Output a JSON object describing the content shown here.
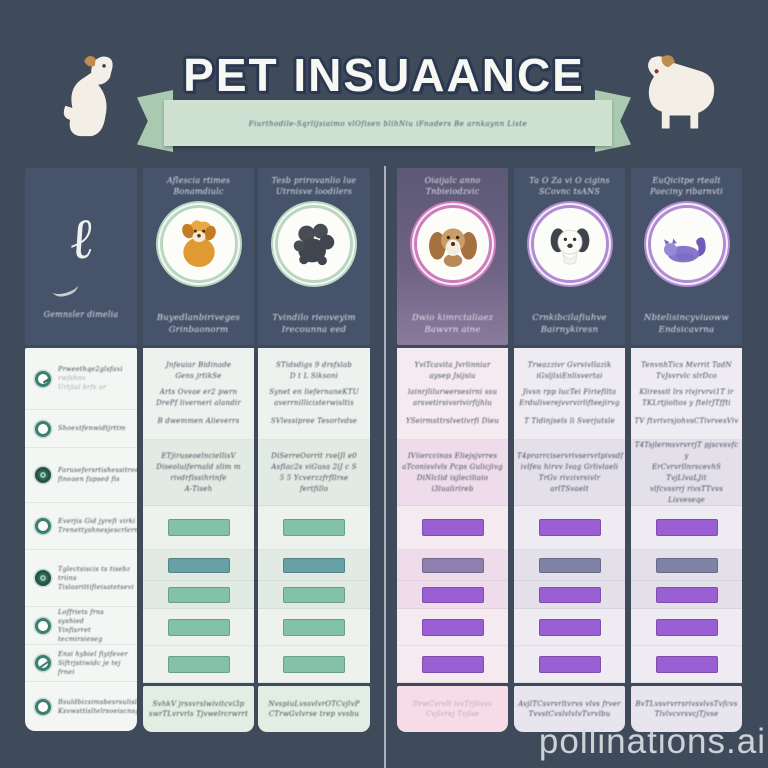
{
  "banner": {
    "title": "PET INSUAANCE",
    "subtitle": "Fiurthodile-Sqrlijsiaimo vlOfisen blihNiu iFnaders Be arnkaynn Liste"
  },
  "watermark": "pollinations.ai",
  "colors": {
    "background": "#3f4a5b",
    "panel": "#47536a",
    "mint": "#cfe1d1",
    "mint_dark": "#a9c9b1",
    "title": "#f7f8f3",
    "title_outline": "#2c3850",
    "ink": "#2e3a49",
    "green_bar": "#84c1ab",
    "teal_bar": "#67a0a5",
    "purple_bar": "#9a5fd3",
    "gray_bar": "#7e83a5",
    "rose_gray_bar": "#8d80af",
    "divider_line": "#c6ccd6",
    "watermark": "#dde1e5",
    "label_teal": "#3c7f72"
  },
  "left_panel": {
    "glyph": "ℓ",
    "heading": "Gemnsler dimelia",
    "rows": [
      {
        "icon": "clock-icon",
        "lines": [
          "Prweethqe2glsfaxi",
          "rwfshnv",
          "Urtjial krfs ar"
        ]
      },
      {
        "icon": "ring-icon",
        "lines": [
          "Shoextfenwidtjrttm"
        ]
      },
      {
        "icon": "swirl-icon",
        "lines": [
          "Farusefersrtishessitree",
          "fineaen fapsed fis"
        ]
      },
      {
        "icon": "ring-icon",
        "lines": [
          "Everjis Gid jyrefi virki",
          "Trenettyshnesjescrlernds"
        ]
      },
      {
        "icon": "swirl-icon",
        "lines": [
          "Tglectsiscis ts tisebz triins",
          "Tislasrittifieisatetsevi"
        ]
      },
      {
        "icon": "ring-icon",
        "lines": [
          "Loffriets frns syshied",
          "Yinfisrret tecmirsieseg"
        ]
      },
      {
        "icon": "ring-slash-icon",
        "lines": [
          "Ensi hybiel fiyifever",
          "Siftrjstiwidc je tej frnei"
        ]
      },
      {
        "icon": "ring-icon",
        "lines": [
          "Bsuldbizsimsbesrsulislavlu",
          "Ksvwsttisltelrsoeiscnsg"
        ]
      }
    ]
  },
  "columns": [
    {
      "theme": "green",
      "header_lines": [
        "Aflescia rtimes",
        "Bonamdiulc"
      ],
      "icon": "orange-dog-icon",
      "name_lines": [
        "Buyedlanbiriveges",
        "Grinbaonorm"
      ],
      "rowA": [
        "Jnfeuiar Bidinade",
        "Gens jrtikSe",
        "Arts Ovvae er2 pwrn",
        "DrePf liverneri alandir",
        "B dwemmen Alieverrs"
      ],
      "rowB": [
        "ETjiruseoelnciellisV",
        "Diseoluifernald slim m",
        "rivdrfissihrinfe",
        "A-Tiseh"
      ],
      "card": [
        "SvhkV jrssvrslwivitcvi3p",
        "swrTLvrvrls Tjvwelrcrwrrt"
      ]
    },
    {
      "theme": "green",
      "header_lines": [
        "Tesb prirovanlio lue",
        "Utrnisve loodilers"
      ],
      "icon": "gray-dog-icon",
      "name_lines": [
        "Tvindilo rieoveyim",
        "Irecounna eed"
      ],
      "rowA": [
        "STidsdigs 9 drsfslab",
        "D t L Siksoni",
        "Synet en liefernaneKTU",
        "averrnillicisterwisltis",
        "SVlessipree Tesorlvdse"
      ],
      "rowB": [
        "DiSerreOorrit rvelJl e0",
        "Asflac2s viGusa 2iJ c S",
        "5 5 Ycverzzfrfllrse",
        "fertfillo"
      ],
      "card": [
        "NvspiuLvssvlvrOTCvjlvP",
        "CTrwGvlvrse trep vvsbu"
      ]
    },
    {
      "theme": "rose",
      "header_lines": [
        "Oiaijalc anno",
        "Tnbieiodzvic"
      ],
      "icon": "brown-puppy-icon",
      "name_lines": [
        "Dwio kimrctaliaez",
        "Bawvrn aine"
      ],
      "rowA": [
        "YviTcavita Jvrlinniar",
        "aysep Jsijsiu",
        "lainrjlilurwersesirni ssu",
        "arsvetirsivsrivirfijhlu",
        "YSeirmsttrslvetivrfi Dieu"
      ],
      "rowB": [
        "IViierccinas Eliejsjvrres",
        "aTconisvlvls Pcps Gulicjivg",
        "DiNlclid isjleciliaio",
        "i3lualirireb"
      ],
      "card": [
        "DrwCvrvlt ivsTrjlivsv",
        "Cvjlvrej Tvjlse"
      ]
    },
    {
      "theme": "lav",
      "header_lines": [
        "Ta O Za vi O cigins",
        "SCovnc tsANS"
      ],
      "icon": "white-dog-icon",
      "name_lines": [
        "Crnkibcilafiuhve",
        "Bairnykiresn"
      ],
      "rowA": [
        "Trwazzivr Gvrvivllazik",
        "iGsljlsiEnlisvertai",
        "Jivsn rpp lucTei Firiefilta",
        "Erduliverejvvrvirlifteejirvg",
        "T Tidinjsels li Sverjutsle"
      ],
      "rowB": [
        "T4prarrciservrivservrlpivsdf",
        "ivlfeu hirvv Ivag Grlivlaeli",
        "TrGv rivzivrsivlr",
        "arlTSvaelt"
      ],
      "card": [
        "AvjlTCsvrvrltvrvs vlvs frver",
        "TvvstCvslvlvlvTvrvlbu"
      ]
    },
    {
      "theme": "lav",
      "header_lines": [
        "EuQicitpe rtealt",
        "Paeciny ribarnvti"
      ],
      "icon": "purple-cat-icon",
      "name_lines": [
        "Nbtelisincyviuoww",
        "Endsicavrna"
      ],
      "rowA": [
        "TenvnhTics Mvrrit TadN",
        "TvJsvrvlc slrDco",
        "Kliressit lrs rivjrvrvi1T ir",
        "TKLrtjioltos y ftelrJTffti",
        "TV ftvrivrsjohvsCTivrvesViv"
      ],
      "rowB": [
        "T4TsjlermsvrvrrjT pjscvsvfc y",
        "ErCvrvrllnrscevhS TvjLlvaLJit",
        "vlfcvssrrj rivsTTvvs",
        "Lisveseqe"
      ],
      "card": [
        "BvTLvsvrvrrsrivsvlvsTvfcvs",
        "TlvlvcvrsvcjTjvse"
      ]
    }
  ]
}
